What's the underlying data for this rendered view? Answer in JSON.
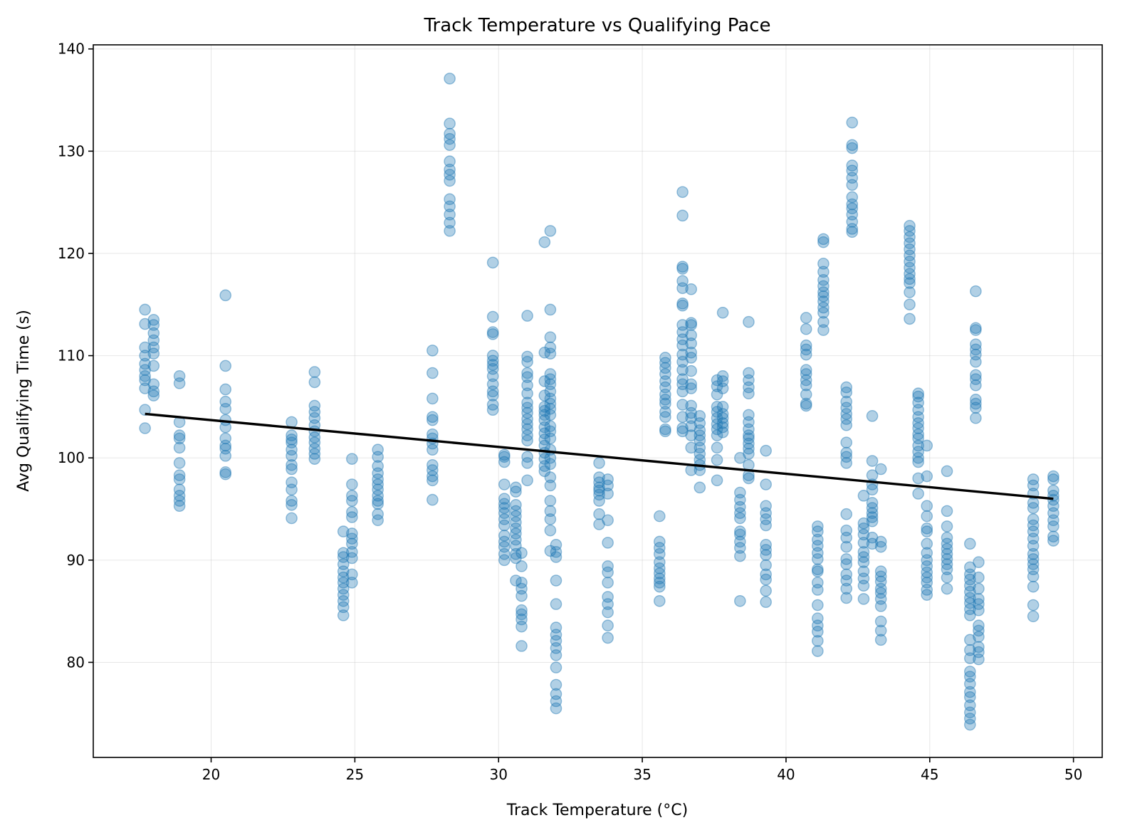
{
  "chart_data": {
    "type": "scatter",
    "title": "Track Temperature vs Qualifying Pace",
    "xlabel": "Track Temperature (°C)",
    "ylabel": "Avg Qualifying Time (s)",
    "xlim": [
      15.9,
      51.0
    ],
    "ylim": [
      70.7,
      140.4
    ],
    "xticks": [
      20,
      25,
      30,
      35,
      40,
      45,
      50
    ],
    "yticks": [
      80,
      90,
      100,
      110,
      120,
      130,
      140
    ],
    "grid": true,
    "colors": {
      "points": "#1f77b4",
      "trend": "#000000"
    },
    "trend_line": {
      "x": [
        17.7,
        49.3
      ],
      "y": [
        104.3,
        96.0
      ]
    },
    "clusters": [
      {
        "x": 17.7,
        "y": [
          114.5,
          113.1,
          110.8,
          110.0,
          109.2,
          108.6,
          108.0,
          107.6,
          106.8,
          104.7,
          102.9
        ]
      },
      {
        "x": 18.0,
        "y": [
          113.5,
          113.0,
          112.2,
          111.5,
          110.8,
          110.2,
          109.0,
          107.2,
          106.5,
          106.1
        ]
      },
      {
        "x": 18.9,
        "y": [
          108.0,
          107.3,
          103.5,
          102.2,
          101.9,
          101.0,
          99.5,
          98.3,
          97.9,
          96.9,
          96.3,
          95.8,
          95.3
        ]
      },
      {
        "x": 20.5,
        "y": [
          115.9,
          109.0,
          106.7,
          105.5,
          104.8,
          103.7,
          103.0,
          101.9,
          101.2,
          100.9,
          100.2,
          98.6,
          98.4
        ]
      },
      {
        "x": 22.8,
        "y": [
          103.5,
          102.2,
          101.8,
          101.5,
          100.8,
          100.2,
          99.3,
          98.9,
          97.6,
          96.9,
          95.8,
          95.4,
          94.1
        ]
      },
      {
        "x": 23.6,
        "y": [
          108.4,
          107.4,
          105.1,
          104.5,
          103.9,
          103.2,
          102.6,
          102.0,
          101.5,
          100.9,
          100.4,
          99.9
        ]
      },
      {
        "x": 24.6,
        "y": [
          92.8,
          90.7,
          90.3,
          89.6,
          88.9,
          88.3,
          87.8,
          87.2,
          86.6,
          86.0,
          85.4,
          84.6
        ]
      },
      {
        "x": 24.9,
        "y": [
          99.9,
          97.4,
          96.3,
          95.8,
          94.7,
          94.2,
          92.6,
          92.1,
          91.6,
          90.8,
          90.2,
          88.6,
          87.8
        ]
      },
      {
        "x": 25.8,
        "y": [
          100.8,
          100.1,
          99.2,
          98.5,
          97.9,
          97.4,
          96.9,
          96.3,
          95.8,
          95.5,
          94.5,
          93.9
        ]
      },
      {
        "x": 27.7,
        "y": [
          110.5,
          108.3,
          105.8,
          104.0,
          103.7,
          102.3,
          101.9,
          101.4,
          100.8,
          99.3,
          98.8,
          98.2,
          97.8,
          95.9
        ]
      },
      {
        "x": 28.3,
        "y": [
          137.1,
          132.7,
          131.7,
          131.2,
          130.6,
          129.0,
          128.2,
          127.7,
          127.1,
          125.3,
          124.6,
          123.8,
          123.0,
          122.2
        ]
      },
      {
        "x": 29.8,
        "y": [
          119.1,
          113.8,
          112.3,
          112.1,
          110.0,
          109.5,
          109.1,
          108.7,
          108.0,
          107.2,
          106.5,
          106.1,
          105.2,
          104.7
        ]
      },
      {
        "x": 30.2,
        "y": [
          100.3,
          100.1,
          99.6,
          97.4,
          96.0,
          95.5,
          95.1,
          94.6,
          94.0,
          93.4,
          92.4,
          91.8,
          91.3,
          90.6,
          90.0
        ]
      },
      {
        "x": 30.6,
        "y": [
          97.1,
          96.7,
          95.4,
          94.8,
          94.3,
          93.7,
          93.1,
          92.6,
          92.0,
          91.4,
          90.6,
          90.2,
          88.0
        ]
      },
      {
        "x": 30.8,
        "y": [
          90.7,
          89.4,
          87.8,
          87.2,
          86.5,
          85.1,
          84.7,
          84.2,
          83.5,
          81.6
        ]
      },
      {
        "x": 31.0,
        "y": [
          113.9,
          109.9,
          109.4,
          108.3,
          107.9,
          107.1,
          106.3,
          105.4,
          104.9,
          104.4,
          103.8,
          103.3,
          102.8,
          102.2,
          101.7,
          100.1,
          99.5,
          97.8
        ]
      },
      {
        "x": 31.6,
        "y": [
          121.1,
          110.3,
          107.5,
          106.1,
          105.0,
          104.6,
          104.2,
          103.7,
          103.0,
          102.4,
          101.8,
          101.2,
          100.5,
          99.9,
          99.2,
          98.7
        ]
      },
      {
        "x": 31.8,
        "y": [
          122.2,
          114.5,
          111.8,
          110.8,
          110.2,
          108.2,
          107.7,
          107.2,
          106.5,
          105.8,
          105.3,
          104.8,
          104.2,
          103.1,
          102.6,
          101.9,
          100.8,
          100.0,
          99.4,
          98.1,
          97.3,
          95.8,
          94.8,
          94.0,
          92.9,
          90.9
        ]
      },
      {
        "x": 32.0,
        "y": [
          91.5,
          90.8,
          90.3,
          88.0,
          85.7,
          83.4,
          82.7,
          82.1,
          81.4,
          80.7,
          79.5,
          77.8,
          76.9,
          76.2,
          75.5
        ]
      },
      {
        "x": 33.5,
        "y": [
          99.5,
          98.1,
          97.6,
          97.1,
          96.8,
          96.4,
          95.8,
          94.5,
          93.5
        ]
      },
      {
        "x": 33.8,
        "y": [
          97.9,
          97.3,
          96.5,
          93.9,
          91.7,
          89.4,
          88.8,
          87.8,
          86.4,
          85.7,
          84.9,
          83.6,
          82.4
        ]
      },
      {
        "x": 35.6,
        "y": [
          94.3,
          91.8,
          91.2,
          90.6,
          89.8,
          89.2,
          88.7,
          88.2,
          87.8,
          87.4,
          86.0
        ]
      },
      {
        "x": 35.8,
        "y": [
          109.8,
          109.3,
          108.8,
          108.2,
          107.5,
          106.9,
          106.2,
          105.7,
          105.3,
          104.5,
          104.0,
          102.8,
          102.6
        ]
      },
      {
        "x": 36.4,
        "y": [
          126.0,
          123.7,
          118.7,
          118.5,
          117.3,
          116.6,
          115.1,
          114.9,
          113.0,
          112.3,
          111.6,
          111.0,
          110.1,
          109.4,
          108.6,
          107.7,
          107.2,
          106.5,
          105.2,
          104.0,
          102.9,
          102.6
        ]
      },
      {
        "x": 36.7,
        "y": [
          116.5,
          113.2,
          113.0,
          112.0,
          111.2,
          110.3,
          109.8,
          108.5,
          107.2,
          106.8,
          105.1,
          104.4,
          103.9,
          103.1,
          102.2,
          101.0,
          98.8
        ]
      },
      {
        "x": 37.0,
        "y": [
          104.1,
          103.4,
          102.7,
          102.2,
          101.7,
          101.0,
          100.4,
          99.8,
          99.3,
          98.8,
          97.1
        ]
      },
      {
        "x": 37.6,
        "y": [
          107.6,
          107.0,
          106.2,
          105.0,
          104.5,
          103.9,
          103.3,
          102.8,
          102.2,
          101.0,
          99.8,
          97.8
        ]
      },
      {
        "x": 37.8,
        "y": [
          114.2,
          108.0,
          107.5,
          106.8,
          105.0,
          104.3,
          103.9,
          103.4,
          103.0,
          102.5
        ]
      },
      {
        "x": 38.4,
        "y": [
          100.0,
          96.6,
          95.9,
          95.2,
          94.6,
          94.1,
          92.8,
          92.5,
          91.8,
          91.2,
          90.4,
          86.0
        ]
      },
      {
        "x": 38.7,
        "y": [
          113.3,
          108.3,
          107.6,
          106.9,
          106.3,
          104.2,
          103.5,
          102.8,
          102.2,
          101.9,
          101.4,
          100.9,
          100.4,
          99.3,
          98.3,
          98.0
        ]
      },
      {
        "x": 39.3,
        "y": [
          100.7,
          97.4,
          95.3,
          94.6,
          94.0,
          93.4,
          91.5,
          91.0,
          90.5,
          89.5,
          88.6,
          88.1,
          87.0,
          85.9
        ]
      },
      {
        "x": 40.7,
        "y": [
          113.7,
          112.6,
          111.0,
          110.6,
          110.1,
          108.6,
          108.2,
          107.6,
          107.1,
          106.2,
          105.3,
          105.1
        ]
      },
      {
        "x": 41.1,
        "y": [
          93.3,
          92.8,
          92.0,
          91.4,
          90.7,
          90.1,
          89.1,
          88.9,
          87.8,
          87.1,
          85.6,
          84.3,
          83.6,
          83.0,
          82.1,
          81.1
        ]
      },
      {
        "x": 41.3,
        "y": [
          121.4,
          121.1,
          119.0,
          118.2,
          117.4,
          116.8,
          116.2,
          115.8,
          115.3,
          114.7,
          114.2,
          113.3,
          112.5
        ]
      },
      {
        "x": 42.1,
        "y": [
          106.9,
          106.4,
          105.5,
          104.9,
          104.3,
          103.8,
          103.2,
          101.5,
          100.5,
          100.1,
          99.5,
          94.5,
          92.9,
          92.2,
          91.3,
          90.1,
          89.6,
          88.6,
          88.0,
          87.2,
          86.3
        ]
      },
      {
        "x": 42.3,
        "y": [
          132.8,
          130.6,
          130.3,
          128.6,
          128.1,
          127.4,
          126.7,
          125.5,
          124.8,
          124.4,
          123.8,
          123.1,
          122.4,
          122.1
        ]
      },
      {
        "x": 42.7,
        "y": [
          96.3,
          93.6,
          93.1,
          92.5,
          91.7,
          90.8,
          90.3,
          89.8,
          88.9,
          88.2,
          87.5,
          86.2
        ]
      },
      {
        "x": 43.0,
        "y": [
          104.1,
          99.7,
          98.3,
          97.4,
          96.9,
          95.6,
          95.1,
          94.6,
          94.2,
          93.8,
          92.2,
          91.6
        ]
      },
      {
        "x": 43.3,
        "y": [
          98.9,
          91.8,
          91.3,
          88.9,
          88.4,
          87.9,
          87.2,
          86.8,
          86.2,
          85.5,
          84.0,
          83.1,
          82.2
        ]
      },
      {
        "x": 44.3,
        "y": [
          122.7,
          122.2,
          121.6,
          121.0,
          120.4,
          119.8,
          119.2,
          118.6,
          118.0,
          117.5,
          117.1,
          116.2,
          115.0,
          113.6
        ]
      },
      {
        "x": 44.6,
        "y": [
          106.3,
          106.0,
          105.4,
          104.7,
          104.0,
          103.4,
          102.9,
          102.3,
          101.9,
          101.2,
          100.6,
          100.0,
          99.6,
          98.0,
          96.5
        ]
      },
      {
        "x": 44.9,
        "y": [
          101.2,
          98.2,
          95.3,
          94.3,
          93.1,
          92.8,
          91.6,
          90.7,
          90.0,
          89.4,
          88.8,
          88.3,
          87.8,
          87.1,
          86.6
        ]
      },
      {
        "x": 45.6,
        "y": [
          98.7,
          94.8,
          93.3,
          92.2,
          91.6,
          91.1,
          90.6,
          90.1,
          89.6,
          89.1,
          88.3,
          87.2
        ]
      },
      {
        "x": 46.4,
        "y": [
          91.6,
          89.3,
          88.6,
          88.1,
          87.5,
          86.9,
          86.3,
          85.8,
          85.2,
          84.6,
          82.2,
          81.2,
          80.4,
          79.1,
          78.6,
          77.9,
          77.1,
          76.6,
          75.8,
          75.1,
          74.5,
          73.9
        ]
      },
      {
        "x": 46.6,
        "y": [
          116.3,
          112.7,
          112.5,
          111.1,
          110.6,
          110.1,
          109.4,
          108.1,
          107.7,
          107.1,
          105.7,
          105.3,
          104.9,
          103.9
        ]
      },
      {
        "x": 46.7,
        "y": [
          89.8,
          88.3,
          87.2,
          86.2,
          85.7,
          85.1,
          83.6,
          83.1,
          82.5,
          81.5,
          81.0,
          80.3
        ]
      },
      {
        "x": 48.6,
        "y": [
          97.9,
          97.3,
          96.5,
          95.6,
          95.1,
          94.0,
          93.4,
          92.8,
          92.1,
          91.4,
          90.6,
          90.1,
          89.6,
          89.1,
          88.4,
          87.4,
          85.6,
          84.5
        ]
      },
      {
        "x": 49.3,
        "y": [
          98.2,
          97.9,
          96.8,
          96.3,
          95.9,
          95.3,
          94.6,
          93.9,
          93.3,
          92.3,
          91.9
        ]
      }
    ]
  }
}
